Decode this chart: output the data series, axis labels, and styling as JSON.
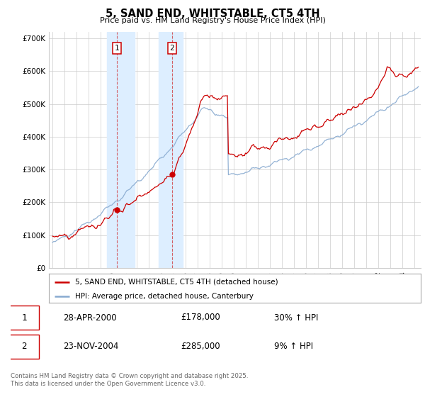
{
  "title": "5, SAND END, WHITSTABLE, CT5 4TH",
  "subtitle": "Price paid vs. HM Land Registry's House Price Index (HPI)",
  "xlim_start": 1994.7,
  "xlim_end": 2025.5,
  "ylim": [
    0,
    720000
  ],
  "yticks": [
    0,
    100000,
    200000,
    300000,
    400000,
    500000,
    600000,
    700000
  ],
  "ytick_labels": [
    "£0",
    "£100K",
    "£200K",
    "£300K",
    "£400K",
    "£500K",
    "£600K",
    "£700K"
  ],
  "xticks": [
    1995,
    1996,
    1997,
    1998,
    1999,
    2000,
    2001,
    2002,
    2003,
    2004,
    2005,
    2006,
    2007,
    2008,
    2009,
    2010,
    2011,
    2012,
    2013,
    2014,
    2015,
    2016,
    2017,
    2018,
    2019,
    2020,
    2021,
    2022,
    2023,
    2024,
    2025
  ],
  "red_color": "#cc0000",
  "blue_color": "#88aad0",
  "shade_color": "#ddeeff",
  "grid_color": "#cccccc",
  "bg_color": "#ffffff",
  "legend_label_red": "5, SAND END, WHITSTABLE, CT5 4TH (detached house)",
  "legend_label_blue": "HPI: Average price, detached house, Canterbury",
  "sale1_year": 2000.32,
  "sale1_price": 178000,
  "sale1_label": "1",
  "sale1_date": "28-APR-2000",
  "sale1_amount": "£178,000",
  "sale1_hpi": "30% ↑ HPI",
  "sale2_year": 2004.9,
  "sale2_price": 285000,
  "sale2_label": "2",
  "sale2_date": "23-NOV-2004",
  "sale2_amount": "£285,000",
  "sale2_hpi": "9% ↑ HPI",
  "shade1_start": 1999.5,
  "shade1_end": 2001.8,
  "shade2_start": 2003.8,
  "shade2_end": 2005.8,
  "footer_text": "Contains HM Land Registry data © Crown copyright and database right 2025.\nThis data is licensed under the Open Government Licence v3.0."
}
